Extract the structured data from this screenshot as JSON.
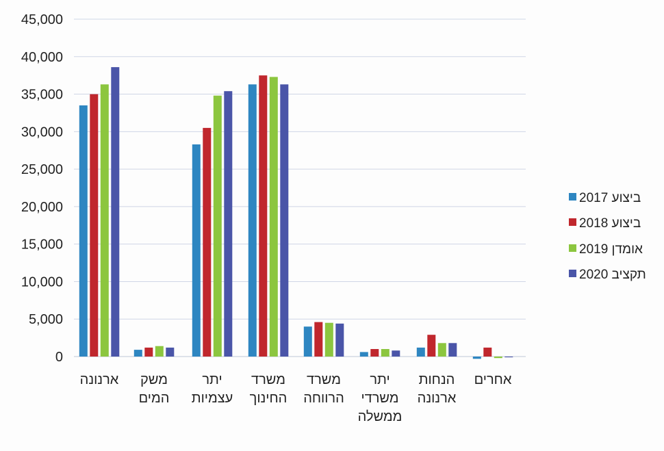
{
  "chart_data": {
    "type": "bar",
    "title": "",
    "xlabel": "",
    "ylabel": "",
    "ylim": [
      0,
      45000
    ],
    "yticks": [
      0,
      5000,
      10000,
      15000,
      20000,
      25000,
      30000,
      35000,
      40000,
      45000
    ],
    "ytick_labels": [
      "0",
      "5,000",
      "10,000",
      "15,000",
      "20,000",
      "25,000",
      "30,000",
      "35,000",
      "40,000",
      "45,000"
    ],
    "grid": true,
    "legend_position": "right",
    "categories": [
      [
        "ארנונה"
      ],
      [
        "משק",
        "המים"
      ],
      [
        "יתר",
        "עצמיות"
      ],
      [
        "משרד",
        "החינוך"
      ],
      [
        "משרד",
        "הרווחה"
      ],
      [
        "יתר",
        "משרדי",
        "ממשלה"
      ],
      [
        "הנחות",
        "ארנונה"
      ],
      [
        "אחרים"
      ]
    ],
    "series": [
      {
        "name": "ביצוע 2017",
        "color": "#2e86c1",
        "values": [
          33500,
          900,
          28300,
          36300,
          4000,
          600,
          1200,
          -300
        ]
      },
      {
        "name": "ביצוע 2018",
        "color": "#c0272d",
        "values": [
          35000,
          1200,
          30500,
          37500,
          4600,
          1000,
          2900,
          1200
        ]
      },
      {
        "name": "אומדן 2019",
        "color": "#8cc63f",
        "values": [
          36300,
          1400,
          34800,
          37300,
          4500,
          1000,
          1800,
          -200
        ]
      },
      {
        "name": "תקציב 2020",
        "color": "#4a55a8",
        "values": [
          38600,
          1200,
          35400,
          36300,
          4400,
          800,
          1800,
          -100
        ]
      }
    ]
  }
}
